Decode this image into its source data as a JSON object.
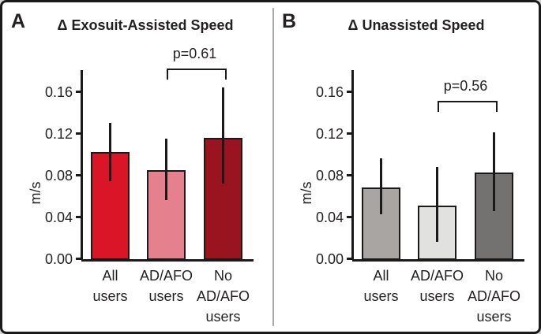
{
  "figure": {
    "outer_background": "#d6d6d6",
    "panel_background": "#ffffff",
    "border_color": "#1b1b1b",
    "divider_color": "#a9a9a9",
    "text_color": "#231f20"
  },
  "chart_data": [
    {
      "type": "bar",
      "panel_label": "A",
      "title": "Δ Exosuit-Assisted Speed",
      "ylabel": "m/s",
      "ylim": [
        0,
        0.18
      ],
      "yticks": [
        0.0,
        0.04,
        0.08,
        0.12,
        0.16
      ],
      "ytick_labels": [
        "0.00",
        "0.04",
        "0.08",
        "0.12",
        "0.16"
      ],
      "grid": false,
      "categories": [
        "All users",
        "AD/AFO users",
        "No AD/AFO users"
      ],
      "category_lines": [
        [
          "All",
          "users"
        ],
        [
          "AD/AFO",
          "users"
        ],
        [
          "No",
          "AD/AFO",
          "users"
        ]
      ],
      "values": [
        0.102,
        0.085,
        0.116
      ],
      "error_low": [
        0.074,
        0.056,
        0.072
      ],
      "error_high": [
        0.13,
        0.115,
        0.164
      ],
      "bar_colors": [
        "#d91527",
        "#e4818c",
        "#9a141f"
      ],
      "bar_edge_color": "#1a1a1a",
      "significance": {
        "label": "p=0.61",
        "between": [
          1,
          2
        ],
        "height": 0.182
      }
    },
    {
      "type": "bar",
      "panel_label": "B",
      "title": "Δ Unassisted Speed",
      "ylabel": "m/s",
      "ylim": [
        0,
        0.18
      ],
      "yticks": [
        0.0,
        0.04,
        0.08,
        0.12,
        0.16
      ],
      "ytick_labels": [
        "0.00",
        "0.04",
        "0.08",
        "0.12",
        "0.16"
      ],
      "grid": false,
      "categories": [
        "All users",
        "AD/AFO users",
        "No AD/AFO users"
      ],
      "category_lines": [
        [
          "All",
          "users"
        ],
        [
          "AD/AFO",
          "users"
        ],
        [
          "No",
          "AD/AFO",
          "users"
        ]
      ],
      "values": [
        0.068,
        0.051,
        0.083
      ],
      "error_low": [
        0.043,
        0.016,
        0.046
      ],
      "error_high": [
        0.096,
        0.088,
        0.121
      ],
      "bar_colors": [
        "#a8a5a2",
        "#e1e1df",
        "#747271"
      ],
      "bar_edge_color": "#1a1a1a",
      "significance": {
        "label": "p=0.56",
        "between": [
          1,
          2
        ],
        "height": 0.151
      }
    }
  ]
}
